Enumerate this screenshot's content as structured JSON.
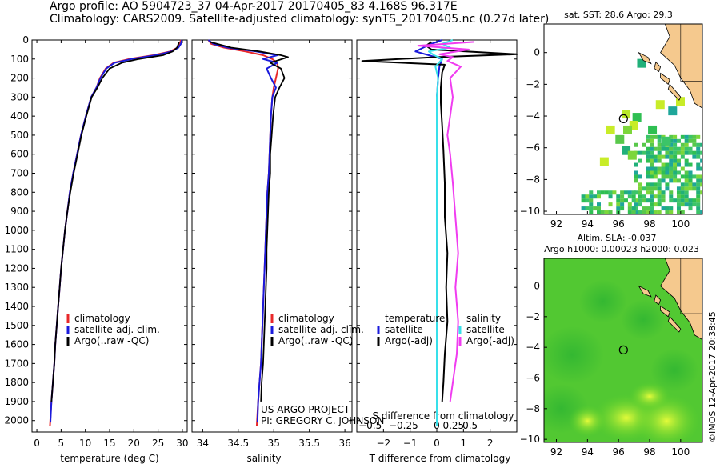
{
  "title": {
    "line1": "Argo profile: AO 5904723_37 04-Apr-2017 20170405_83 4.168S 96.317E",
    "line2": "Climatology: CARS2009. Satellite-adjusted climatology: synTS_20170405.nc (0.27d later)"
  },
  "colors": {
    "climatology": "#e8282a",
    "satellite": "#1a1adc",
    "argo": "#000000",
    "satellite_s": "#38e0ea",
    "argo_s": "#f03cf0",
    "land": "#f5c98e",
    "ocean_bg": "#ffffff"
  },
  "chart_data": [
    {
      "id": "temperature",
      "type": "line",
      "xlabel": "temperature (deg C)",
      "ylabel": "",
      "xlim": [
        -1,
        31
      ],
      "ylim": [
        2060,
        0
      ],
      "xticks": [
        0,
        5,
        10,
        15,
        20,
        25,
        30
      ],
      "xtick_labels": [
        "0",
        "5",
        "10",
        "15",
        "20",
        "25",
        "30"
      ],
      "yticks": [
        0,
        100,
        200,
        300,
        400,
        500,
        600,
        700,
        800,
        900,
        1000,
        1100,
        1200,
        1300,
        1400,
        1500,
        1600,
        1700,
        1800,
        1900,
        2000
      ],
      "ytick_labels": [
        "0",
        "100",
        "200",
        "300",
        "400",
        "500",
        "600",
        "700",
        "800",
        "900",
        "1000",
        "1100",
        "1200",
        "1300",
        "1400",
        "1500",
        "1600",
        "1700",
        "1800",
        "1900",
        "2000"
      ],
      "legend": [
        "climatology",
        "satellite-adj. clim.",
        "Argo(..raw -QC)"
      ],
      "series": [
        {
          "name": "climatology",
          "color": "#e8282a",
          "x": [
            29.7,
            29.5,
            29.0,
            27.5,
            24.0,
            19.0,
            15.8,
            14.2,
            13.0,
            12.3,
            11.2,
            10.1,
            9.1,
            8.3,
            7.5,
            6.8,
            6.3,
            5.8,
            5.4,
            5.0,
            4.7,
            4.4,
            4.1,
            3.8,
            3.6,
            3.3,
            3.0,
            2.7
          ],
          "y": [
            0,
            20,
            40,
            60,
            80,
            100,
            120,
            150,
            200,
            250,
            300,
            400,
            500,
            600,
            700,
            800,
            900,
            1000,
            1100,
            1200,
            1300,
            1400,
            1500,
            1600,
            1700,
            1800,
            1900,
            2030
          ]
        },
        {
          "name": "satellite-adj. clim.",
          "color": "#1a1adc",
          "x": [
            29.9,
            29.7,
            29.2,
            27.8,
            24.5,
            19.5,
            16.0,
            14.3,
            13.1,
            12.3,
            11.2,
            10.1,
            9.1,
            8.3,
            7.5,
            6.8,
            6.3,
            5.8,
            5.4,
            5.0,
            4.7,
            4.4,
            4.1,
            3.8,
            3.6,
            3.3,
            3.0,
            2.8
          ],
          "y": [
            0,
            20,
            40,
            60,
            80,
            100,
            120,
            150,
            200,
            250,
            300,
            400,
            500,
            600,
            700,
            800,
            900,
            1000,
            1100,
            1200,
            1300,
            1400,
            1500,
            1600,
            1700,
            1800,
            1900,
            2010
          ]
        },
        {
          "name": "Argo(..raw -QC)",
          "color": "#000000",
          "x": [
            29.3,
            29.2,
            28.9,
            28.0,
            26.0,
            21.0,
            17.5,
            15.0,
            13.5,
            12.5,
            11.3,
            10.2,
            9.2,
            8.4,
            7.6,
            6.9,
            6.3,
            5.8,
            5.4,
            5.0,
            4.7,
            4.4,
            4.1,
            3.8,
            3.6,
            3.3,
            3.0
          ],
          "y": [
            10,
            20,
            40,
            60,
            80,
            100,
            120,
            150,
            200,
            250,
            300,
            400,
            500,
            600,
            700,
            800,
            900,
            1000,
            1100,
            1200,
            1300,
            1400,
            1500,
            1600,
            1700,
            1800,
            1900
          ]
        }
      ]
    },
    {
      "id": "salinity",
      "type": "line",
      "xlabel": "salinity",
      "ylabel": "",
      "xlim": [
        33.85,
        36.1
      ],
      "ylim": [
        2060,
        0
      ],
      "xticks": [
        34,
        34.5,
        35,
        35.5,
        36
      ],
      "xtick_labels": [
        "34",
        "34.5",
        "35",
        "35.5",
        "36"
      ],
      "legend": [
        "climatology",
        "satellite-adj. clim.",
        "Argo(..raw -QC)"
      ],
      "annotation": [
        "US ARGO PROJECT",
        "PI: GREGORY C. JOHNSON"
      ],
      "series": [
        {
          "name": "climatology",
          "color": "#e8282a",
          "x": [
            34.08,
            34.12,
            34.3,
            34.6,
            34.85,
            34.98,
            35.05,
            35.06,
            35.03,
            35.0,
            34.98,
            34.96,
            34.95,
            34.94,
            34.93,
            34.91,
            34.9,
            34.89,
            34.88,
            34.87,
            34.86,
            34.85,
            34.84,
            34.83,
            34.82,
            34.8,
            34.78,
            34.76
          ],
          "y": [
            0,
            20,
            40,
            60,
            80,
            100,
            120,
            150,
            200,
            250,
            300,
            400,
            500,
            600,
            700,
            800,
            900,
            1000,
            1100,
            1200,
            1300,
            1400,
            1500,
            1600,
            1700,
            1800,
            1900,
            2030
          ]
        },
        {
          "name": "satellite-adj. clim.",
          "color": "#1a1adc",
          "x": [
            34.08,
            34.15,
            34.35,
            34.75,
            35.05,
            34.85,
            35.05,
            34.9,
            34.96,
            35.03,
            34.98,
            34.96,
            34.95,
            34.94,
            34.93,
            34.91,
            34.9,
            34.89,
            34.88,
            34.87,
            34.86,
            34.85,
            34.84,
            34.83,
            34.82,
            34.8,
            34.78,
            34.77
          ],
          "y": [
            0,
            20,
            40,
            60,
            80,
            100,
            120,
            150,
            200,
            250,
            300,
            400,
            500,
            600,
            700,
            800,
            900,
            1000,
            1100,
            1200,
            1300,
            1400,
            1500,
            1600,
            1700,
            1800,
            1900,
            2010
          ]
        },
        {
          "name": "Argo(..raw -QC)",
          "color": "#000000",
          "x": [
            34.1,
            34.2,
            34.4,
            34.8,
            35.1,
            35.2,
            34.95,
            35.1,
            35.15,
            35.08,
            35.02,
            34.99,
            34.97,
            34.95,
            34.95,
            34.93,
            34.92,
            34.91,
            34.9,
            34.9,
            34.89,
            34.88,
            34.87,
            34.86,
            34.85,
            34.83,
            34.82
          ],
          "y": [
            10,
            20,
            40,
            60,
            80,
            90,
            120,
            150,
            200,
            250,
            300,
            400,
            500,
            600,
            700,
            800,
            900,
            1000,
            1100,
            1200,
            1300,
            1400,
            1500,
            1600,
            1700,
            1800,
            1900
          ]
        }
      ]
    },
    {
      "id": "difference",
      "type": "line",
      "xlabel": "T difference from climatology",
      "xlabel2": "S difference from climatology",
      "xlim": [
        -3,
        3
      ],
      "ylim": [
        2060,
        0
      ],
      "xticks": [
        -2,
        -1,
        0,
        1,
        2
      ],
      "xtick_labels": [
        "−2",
        "−1",
        "0",
        "1",
        "2"
      ],
      "s_xticks": [
        -2.5,
        -1.25,
        0,
        0.625,
        1.25
      ],
      "s_xtick_labels": [
        "−0.5",
        "−0.25",
        "0",
        "0.25",
        "0.5"
      ],
      "legend_temperature": [
        "temperature",
        "satellite",
        "Argo(-adj)"
      ],
      "legend_salinity": [
        "salinity",
        "satellite",
        "Argo(-adj)"
      ],
      "series": [
        {
          "name": "T satellite",
          "color": "#1a1adc",
          "x": [
            0.2,
            -0.2,
            -0.5,
            -0.8,
            -0.3,
            0.2,
            0.1,
            0.05,
            0.0,
            0.0,
            0.0,
            0.0,
            0.0,
            0.0,
            0.0,
            0.0,
            0.0,
            0.0,
            0.0,
            0.0
          ],
          "y": [
            0,
            20,
            40,
            60,
            80,
            100,
            140,
            200,
            300,
            400,
            500,
            600,
            800,
            1000,
            1200,
            1400,
            1600,
            1800,
            1900,
            2030
          ]
        },
        {
          "name": "T Argo(-adj)",
          "color": "#000000",
          "x": [
            -0.2,
            -0.4,
            -0.2,
            3.0,
            0.0,
            -2.8,
            0.3,
            0.2,
            0.15,
            0.15,
            0.2,
            0.25,
            0.3,
            0.3,
            0.4,
            0.35,
            0.4,
            0.3,
            0.25,
            0.2
          ],
          "y": [
            10,
            30,
            50,
            75,
            90,
            110,
            130,
            170,
            250,
            330,
            450,
            580,
            750,
            930,
            1120,
            1300,
            1480,
            1650,
            1800,
            1900
          ]
        },
        {
          "name": "S satellite",
          "color": "#38e0ea",
          "x": [
            0.6,
            0.2,
            0.5,
            -0.3,
            -0.1,
            0.2,
            -0.05,
            0.05,
            0.0,
            0.0,
            0.0,
            0.0,
            0.0,
            0.0,
            0.0,
            0.0,
            0.0,
            0.0,
            0.0,
            0.0
          ],
          "y": [
            0,
            20,
            40,
            60,
            80,
            100,
            140,
            200,
            300,
            400,
            500,
            600,
            800,
            1000,
            1200,
            1400,
            1600,
            1800,
            1900,
            2030
          ]
        },
        {
          "name": "S Argo(-adj)",
          "color": "#f03cf0",
          "x": [
            1.4,
            -0.7,
            1.2,
            0.1,
            0.6,
            0.4,
            0.9,
            0.5,
            0.6,
            0.5,
            0.4,
            0.5,
            0.6,
            0.7,
            0.8,
            0.7,
            0.8,
            0.75,
            0.6,
            0.5
          ],
          "y": [
            10,
            30,
            50,
            75,
            90,
            110,
            140,
            200,
            300,
            400,
            500,
            600,
            750,
            930,
            1120,
            1300,
            1480,
            1650,
            1800,
            1900
          ]
        }
      ]
    },
    {
      "id": "sst_map",
      "type": "heatmap",
      "title": "sat. SST: 28.6 Argo: 29.3",
      "xlim": [
        91.2,
        101.4
      ],
      "ylim": [
        -10.2,
        1.8
      ],
      "xticks": [
        92,
        94,
        96,
        98,
        100
      ],
      "xtick_labels": [
        "92",
        "94",
        "96",
        "98",
        "100"
      ],
      "yticks": [
        0,
        -2,
        -4,
        -6,
        -8,
        -10
      ],
      "ytick_labels": [
        "0",
        "−2",
        "−4",
        "−6",
        "−8",
        "−10"
      ],
      "float_position": [
        96.317,
        -4.168
      ]
    },
    {
      "id": "sla_map",
      "type": "heatmap",
      "title": "Altim. SLA: -0.037",
      "subtitle": "Argo h1000: 0.00023 h2000: 0.023",
      "xlim": [
        91.2,
        101.4
      ],
      "ylim": [
        -10.2,
        1.8
      ],
      "xticks": [
        92,
        94,
        96,
        98,
        100
      ],
      "xtick_labels": [
        "92",
        "94",
        "96",
        "98",
        "100"
      ],
      "yticks": [
        0,
        -2,
        -4,
        -6,
        -8,
        -10
      ],
      "ytick_labels": [
        "0",
        "−2",
        "−4",
        "−6",
        "−8",
        "−10"
      ],
      "float_position": [
        96.317,
        -4.168
      ]
    }
  ],
  "credit": "©IMOS 12-Apr-2017 20:38:45"
}
